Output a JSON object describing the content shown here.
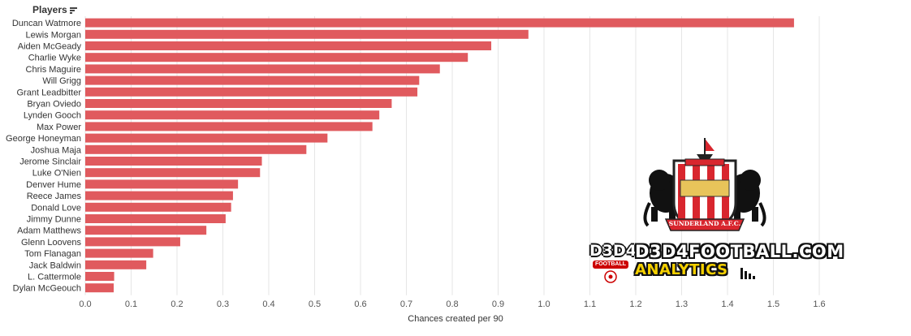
{
  "header": {
    "title": "Players"
  },
  "chart_data": {
    "type": "bar",
    "orientation": "horizontal",
    "categories": [
      "Duncan Watmore",
      "Lewis Morgan",
      "Aiden McGeady",
      "Charlie Wyke",
      "Chris Maguire",
      "Will Grigg",
      "Grant Leadbitter",
      "Bryan Oviedo",
      "Lynden Gooch",
      "Max Power",
      "George Honeyman",
      "Joshua Maja",
      "Jerome Sinclair",
      "Luke O'Nien",
      "Denver Hume",
      "Reece James",
      "Donald Love",
      "Jimmy Dunne",
      "Adam Matthews",
      "Glenn Loovens",
      "Tom Flanagan",
      "Jack Baldwin",
      "L. Cattermole",
      "Dylan McGeouch"
    ],
    "values": [
      1.545,
      0.966,
      0.885,
      0.834,
      0.773,
      0.728,
      0.724,
      0.668,
      0.641,
      0.626,
      0.528,
      0.482,
      0.385,
      0.381,
      0.333,
      0.322,
      0.318,
      0.306,
      0.264,
      0.207,
      0.148,
      0.133,
      0.063,
      0.062
    ],
    "xlabel": "Chances created per 90",
    "ylabel": "Players",
    "xlim": [
      0,
      1.6
    ],
    "xticks": [
      "0.0",
      "0.1",
      "0.2",
      "0.3",
      "0.4",
      "0.5",
      "0.6",
      "0.7",
      "0.8",
      "0.9",
      "1.0",
      "1.1",
      "1.2",
      "1.3",
      "1.4",
      "1.5",
      "1.6"
    ],
    "grid": true,
    "bar_color": "#e05a5e"
  },
  "watermark": {
    "badge_top": "D3D4",
    "badge_word": "FOOTBALL",
    "site": "D3D4FOOTBALL.COM",
    "analytics": "ANALYTICS"
  },
  "crest": {
    "name": "SUNDERLAND A.F.C."
  },
  "colors": {
    "bar": "#e05a5e",
    "crest_red": "#d8262e",
    "watermark_yellow": "#f5d000"
  }
}
